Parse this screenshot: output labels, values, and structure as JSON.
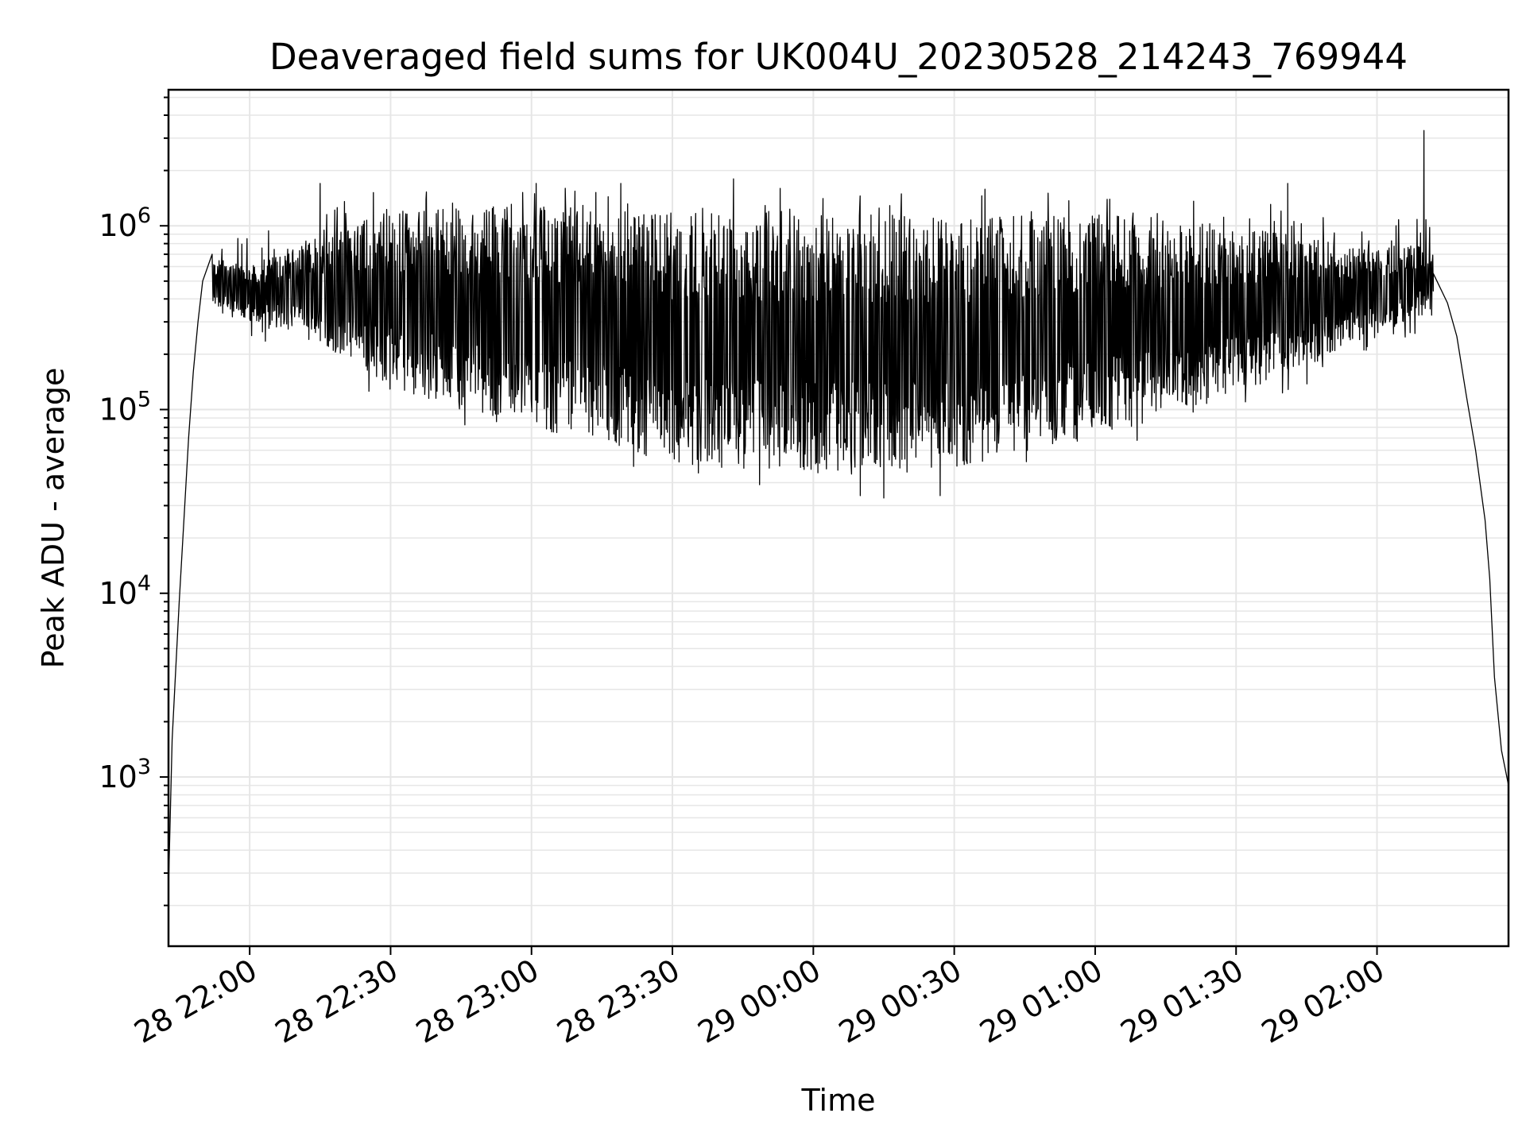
{
  "chart_data": {
    "type": "line",
    "title": "Deaveraged field sums for UK004U_20230528_214243_769944",
    "xlabel": "Time",
    "ylabel": "Peak ADU - average",
    "yscale": "log",
    "ylim": [
      120,
      5500000
    ],
    "xlim": [
      "2023-05-28 21:42:43",
      "2023-05-29 02:28:00"
    ],
    "grid": true,
    "line_color": "#000000",
    "x_ticks": [
      {
        "t": "2023-05-28 22:00",
        "label": "28 22:00"
      },
      {
        "t": "2023-05-28 22:30",
        "label": "28 22:30"
      },
      {
        "t": "2023-05-28 23:00",
        "label": "28 23:00"
      },
      {
        "t": "2023-05-28 23:30",
        "label": "28 23:30"
      },
      {
        "t": "2023-05-29 00:00",
        "label": "29 00:00"
      },
      {
        "t": "2023-05-29 00:30",
        "label": "29 00:30"
      },
      {
        "t": "2023-05-29 01:00",
        "label": "29 01:00"
      },
      {
        "t": "2023-05-29 01:30",
        "label": "29 01:30"
      },
      {
        "t": "2023-05-29 02:00",
        "label": "29 02:00"
      }
    ],
    "y_ticks": [
      {
        "value": 1000,
        "base": "10",
        "exp": "3"
      },
      {
        "value": 10000,
        "base": "10",
        "exp": "4"
      },
      {
        "value": 100000,
        "base": "10",
        "exp": "5"
      },
      {
        "value": 1000000,
        "base": "10",
        "exp": "6"
      }
    ],
    "envelope": {
      "description": "series sampled roughly every 5 s; oscillates between a low and high envelope",
      "upper": [
        [
          "2023-05-28 21:50",
          700000
        ],
        [
          "2023-05-28 22:00",
          600000
        ],
        [
          "2023-05-28 22:15",
          900000
        ],
        [
          "2023-05-28 22:30",
          1200000
        ],
        [
          "2023-05-28 23:00",
          1300000
        ],
        [
          "2023-05-28 23:30",
          1200000
        ],
        [
          "2023-05-29 00:00",
          1200000
        ],
        [
          "2023-05-29 00:30",
          1100000
        ],
        [
          "2023-05-29 01:00",
          1200000
        ],
        [
          "2023-05-29 01:30",
          1000000
        ],
        [
          "2023-05-29 02:00",
          750000
        ],
        [
          "2023-05-29 02:12",
          800000
        ]
      ],
      "lower": [
        [
          "2023-05-28 21:50",
          350000
        ],
        [
          "2023-05-28 22:00",
          300000
        ],
        [
          "2023-05-28 22:15",
          220000
        ],
        [
          "2023-05-28 22:30",
          130000
        ],
        [
          "2023-05-28 23:00",
          80000
        ],
        [
          "2023-05-28 23:30",
          50000
        ],
        [
          "2023-05-29 00:00",
          45000
        ],
        [
          "2023-05-29 00:30",
          48000
        ],
        [
          "2023-05-29 01:00",
          70000
        ],
        [
          "2023-05-29 01:30",
          120000
        ],
        [
          "2023-05-29 02:00",
          250000
        ],
        [
          "2023-05-29 02:12",
          350000
        ]
      ]
    },
    "points": [
      [
        "2023-05-28 21:42:43",
        250
      ],
      [
        "2023-05-28 21:43:30",
        1600
      ],
      [
        "2023-05-28 21:44:10",
        3500
      ],
      [
        "2023-05-28 21:45:00",
        9000
      ],
      [
        "2023-05-28 21:46:00",
        25000
      ],
      [
        "2023-05-28 21:47:00",
        70000
      ],
      [
        "2023-05-28 21:48:00",
        160000
      ],
      [
        "2023-05-28 21:49:00",
        300000
      ],
      [
        "2023-05-28 21:50:00",
        500000
      ],
      [
        "2023-05-28 21:52:00",
        700000
      ],
      [
        "2023-05-28 21:55:00",
        600000
      ],
      [
        "2023-05-28 22:00:00",
        550000
      ],
      [
        "2023-05-28 22:15:00",
        1700000
      ],
      [
        "2023-05-28 23:01:00",
        1700000
      ],
      [
        "2023-05-28 23:43:00",
        1800000
      ],
      [
        "2023-05-29 00:10:00",
        34000
      ],
      [
        "2023-05-29 00:15:00",
        33000
      ],
      [
        "2023-05-29 00:27:00",
        34000
      ],
      [
        "2023-05-29 01:41:00",
        1700000
      ],
      [
        "2023-05-29 02:10:00",
        3300000
      ],
      [
        "2023-05-29 02:12:00",
        550000
      ],
      [
        "2023-05-29 02:15:00",
        380000
      ],
      [
        "2023-05-29 02:17:00",
        250000
      ],
      [
        "2023-05-29 02:19:00",
        120000
      ],
      [
        "2023-05-29 02:21:00",
        60000
      ],
      [
        "2023-05-29 02:23:00",
        25000
      ],
      [
        "2023-05-29 02:24:00",
        12000
      ],
      [
        "2023-05-29 02:25:00",
        3500
      ],
      [
        "2023-05-29 02:26:30",
        1400
      ],
      [
        "2023-05-29 02:28:00",
        900
      ]
    ]
  }
}
